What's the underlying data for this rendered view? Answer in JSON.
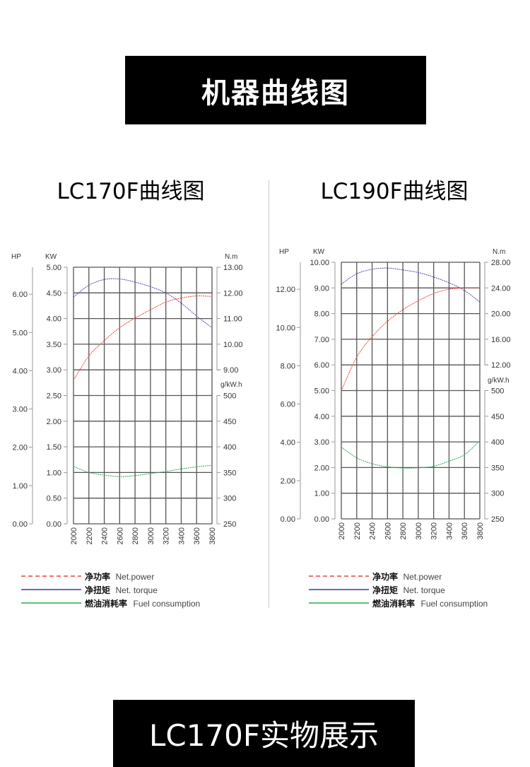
{
  "header": {
    "title": "机器曲线图"
  },
  "footer": {
    "title": "LC170F实物展示"
  },
  "colors": {
    "power": "#e8443a",
    "torque": "#4a4aa8",
    "fuel": "#2aa855",
    "grid": "#444444",
    "banner": "#000000"
  },
  "legend": [
    {
      "zh": "净功率",
      "en": "Net.power",
      "style": "dashed",
      "color": "#e8443a"
    },
    {
      "zh": "净扭矩",
      "en": "Net. torque",
      "style": "solid",
      "color": "#3a3aa0"
    },
    {
      "zh": "燃油消耗率",
      "en": "Fuel consumption",
      "style": "solid",
      "color": "#2aa855"
    }
  ],
  "chart_data": [
    {
      "type": "line",
      "title": "LC170F曲线图",
      "x": [
        2000,
        2200,
        2400,
        2600,
        2800,
        3000,
        3200,
        3400,
        3600,
        3800
      ],
      "x_tick_labels": [
        "2000",
        "2200",
        "2400",
        "2600",
        "2800",
        "3000",
        "3200",
        "3400",
        "3600",
        "3800"
      ],
      "axes": {
        "hp": {
          "label": "HP",
          "ticks": [
            "0.00",
            "1.00",
            "2.00",
            "3.00",
            "4.00",
            "5.00",
            "6.00"
          ]
        },
        "kw": {
          "label": "KW",
          "range": [
            0,
            5
          ],
          "ticks": [
            "0.00",
            "0.50",
            "1.00",
            "1.50",
            "2.00",
            "2.50",
            "3.00",
            "3.50",
            "4.00",
            "4.50",
            "5.00"
          ]
        },
        "nm": {
          "label": "N.m",
          "range": [
            9,
            13
          ],
          "ticks": [
            "9.00",
            "10.00",
            "11.00",
            "12.00",
            "13.00"
          ]
        },
        "fuel": {
          "label": "g/kW.h",
          "range": [
            250,
            500
          ],
          "ticks": [
            "250",
            "300",
            "350",
            "400",
            "450",
            "500"
          ]
        }
      },
      "grid": true,
      "series": [
        {
          "name": "Net.power",
          "axis": "kw",
          "values": [
            2.8,
            3.27,
            3.57,
            3.82,
            4.01,
            4.17,
            4.32,
            4.4,
            4.44,
            4.43
          ]
        },
        {
          "name": "Net. torque",
          "axis": "nm",
          "values": [
            11.84,
            12.3,
            12.52,
            12.54,
            12.42,
            12.24,
            12.0,
            11.6,
            11.1,
            10.64
          ]
        },
        {
          "name": "Fuel consumption",
          "axis": "fuel",
          "values": [
            362,
            350,
            345,
            342,
            344,
            348,
            352,
            357,
            361,
            364
          ]
        }
      ]
    },
    {
      "type": "line",
      "title": "LC190F曲线图",
      "x": [
        2000,
        2200,
        2400,
        2600,
        2800,
        3000,
        3200,
        3400,
        3600,
        3800
      ],
      "x_tick_labels": [
        "2000",
        "2200",
        "2400",
        "2600",
        "2800",
        "3000",
        "3200",
        "3400",
        "3600",
        "3800"
      ],
      "axes": {
        "hp": {
          "label": "HP",
          "ticks": [
            "0.00",
            "2.00",
            "4.00",
            "6.00",
            "8.00",
            "10.00",
            "12.00"
          ]
        },
        "kw": {
          "label": "KW",
          "range": [
            0,
            10
          ],
          "ticks": [
            "0.00",
            "1.00",
            "2.00",
            "3.00",
            "4.00",
            "5.00",
            "6.00",
            "7.00",
            "8.00",
            "9.00",
            "10.00"
          ]
        },
        "nm": {
          "label": "N.m",
          "range": [
            12,
            28
          ],
          "ticks": [
            "12.00",
            "16.00",
            "20.00",
            "24.00",
            "28.00"
          ]
        },
        "fuel": {
          "label": "g/kW.h",
          "range": [
            250,
            500
          ],
          "ticks": [
            "250",
            "300",
            "350",
            "400",
            "450",
            "500"
          ]
        }
      },
      "grid": true,
      "series": [
        {
          "name": "Net.power",
          "axis": "kw",
          "values": [
            5.0,
            6.3,
            7.1,
            7.7,
            8.15,
            8.5,
            8.78,
            8.95,
            9.0,
            9.0
          ]
        },
        {
          "name": "Net. torque",
          "axis": "nm",
          "values": [
            24.6,
            26.2,
            26.9,
            27.1,
            26.8,
            26.4,
            25.7,
            24.8,
            23.6,
            21.8
          ]
        },
        {
          "name": "Fuel consumption",
          "axis": "fuel",
          "values": [
            390,
            369,
            357.5,
            351.5,
            349,
            349.5,
            352.5,
            362.5,
            375,
            402.5
          ]
        }
      ]
    }
  ]
}
